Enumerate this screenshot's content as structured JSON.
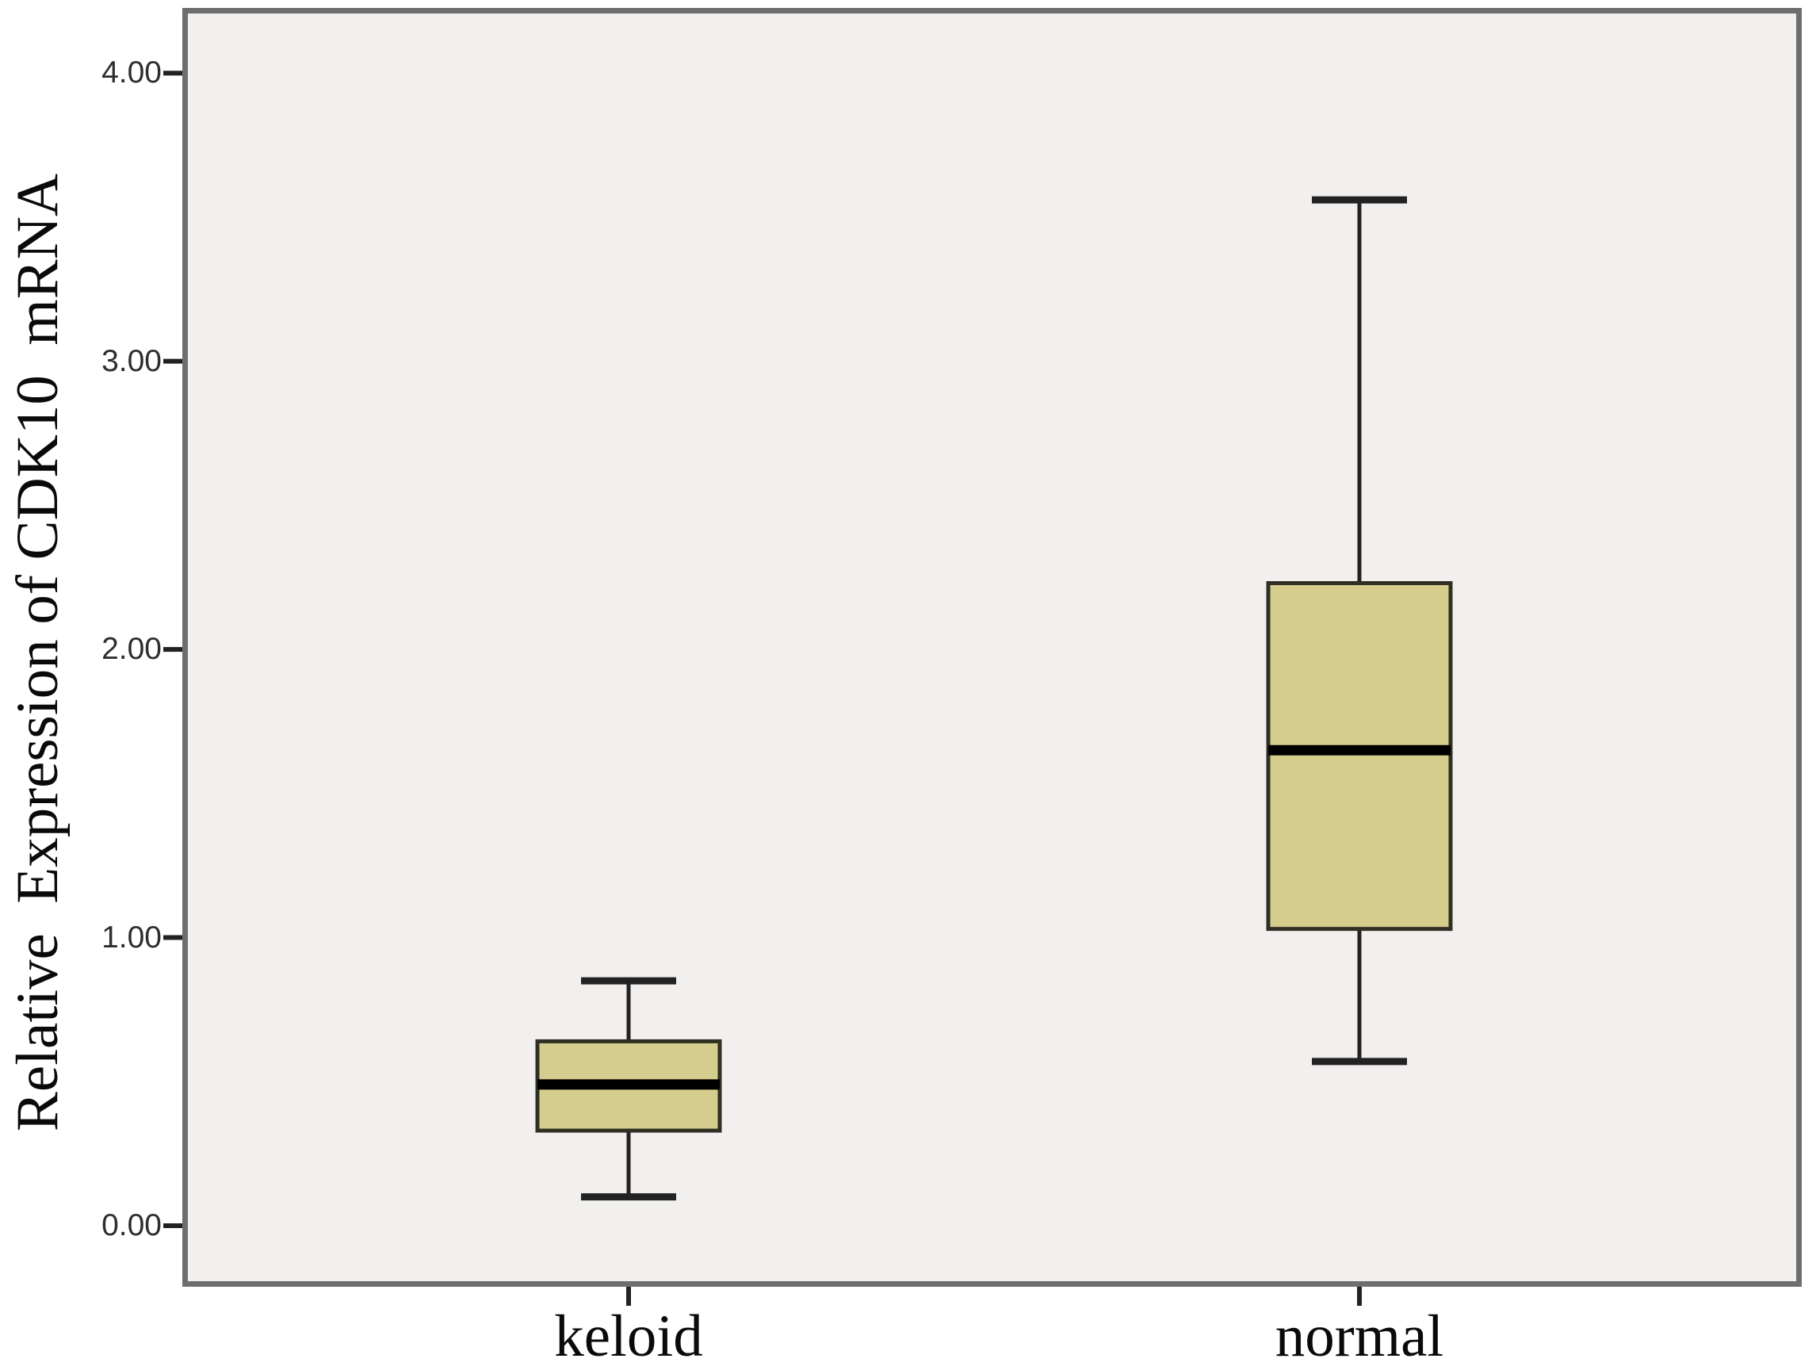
{
  "chart_data": {
    "type": "boxplot",
    "title": "",
    "ylabel": "Relative  Expression of CDK10  mRNA",
    "xlabel": "",
    "categories": [
      "keloid",
      "normal"
    ],
    "yticks": [
      0.0,
      1.0,
      2.0,
      3.0,
      4.0
    ],
    "ytick_labels": [
      "0.00",
      "1.00",
      "2.00",
      "3.00",
      "4.00"
    ],
    "ylim": [
      -0.21,
      4.23
    ],
    "grid": false,
    "legend": null,
    "series": [
      {
        "category": "keloid",
        "min": 0.1,
        "q1": 0.33,
        "median": 0.49,
        "q3": 0.64,
        "max": 0.85,
        "outliers": []
      },
      {
        "category": "normal",
        "min": 0.57,
        "q1": 1.03,
        "median": 1.65,
        "q3": 2.23,
        "max": 3.56,
        "outliers": []
      }
    ],
    "colors": {
      "box_fill": "#d5cd8e",
      "box_border": "#2f2f23",
      "median_line": "#000000",
      "whisker": "#222222",
      "tick_mark": "#222222",
      "tick_label_text": "#2e2e2e",
      "label_text": "#0a0a0a",
      "frame": "#6e6e6e",
      "plot_background": "#f1f0ee",
      "page_background": "#ffffff"
    }
  }
}
